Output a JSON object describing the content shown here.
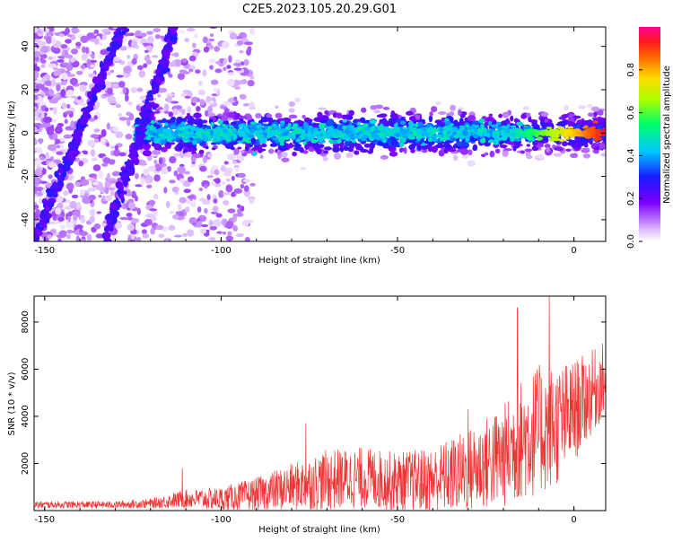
{
  "title": "C2E5.2023.105.20.29.G01",
  "chart_data": [
    {
      "type": "heatmap",
      "xlabel": "Height of straight line (km)",
      "ylabel": "Frequency (Hz)",
      "xlim": [
        -153,
        9
      ],
      "ylim": [
        -50,
        49
      ],
      "xticks": [
        -150,
        -100,
        -50,
        0
      ],
      "yticks": [
        -40,
        -20,
        0,
        20,
        40
      ],
      "colorbar": {
        "label": "Normalized spectral amplitude",
        "range": [
          0,
          1
        ],
        "ticks": [
          0.0,
          0.2,
          0.4,
          0.6,
          0.8
        ],
        "colormap": "rainbow (white-violet-blue-cyan-green-yellow-red-magenta)"
      },
      "features": [
        {
          "kind": "diagonal_streak",
          "x": [
            -153,
            -128
          ],
          "y": [
            -50,
            49
          ]
        },
        {
          "kind": "diagonal_streak",
          "x": [
            -133,
            -113
          ],
          "y": [
            -50,
            49
          ]
        },
        {
          "kind": "horizontal_band",
          "x": [
            -124,
            9
          ],
          "y_center": 0,
          "y_halfwidth": 8
        },
        {
          "kind": "intense_core",
          "x": [
            -18,
            9
          ],
          "y_center": 0,
          "amplitude": 0.95
        }
      ]
    },
    {
      "type": "line",
      "xlabel": "Height of straight line (km)",
      "ylabel": "SNR (10 * v/v)",
      "xlim": [
        -153,
        9
      ],
      "ylim": [
        0,
        9100
      ],
      "xticks": [
        -150,
        -100,
        -50,
        0
      ],
      "yticks": [
        2000,
        4000,
        6000,
        8000
      ],
      "color": "#ee3333",
      "envelope_x": [
        -153,
        -130,
        -120,
        -110,
        -100,
        -90,
        -80,
        -70,
        -60,
        -50,
        -40,
        -30,
        -20,
        -15,
        -10,
        -5,
        0,
        5,
        9
      ],
      "envelope_mean": [
        250,
        250,
        300,
        500,
        500,
        700,
        1000,
        1300,
        1400,
        1200,
        1300,
        1700,
        2300,
        3000,
        3400,
        3600,
        4200,
        5000,
        5600
      ],
      "envelope_spread": [
        150,
        150,
        200,
        400,
        500,
        700,
        1000,
        1300,
        1300,
        1300,
        1400,
        1800,
        2200,
        2600,
        2800,
        2600,
        2200,
        1800,
        1600
      ],
      "peaks": [
        [
          -16,
          8600
        ],
        [
          -7,
          9100
        ],
        [
          -30,
          4300
        ],
        [
          -111,
          1800
        ],
        [
          -76,
          3700
        ]
      ]
    }
  ]
}
